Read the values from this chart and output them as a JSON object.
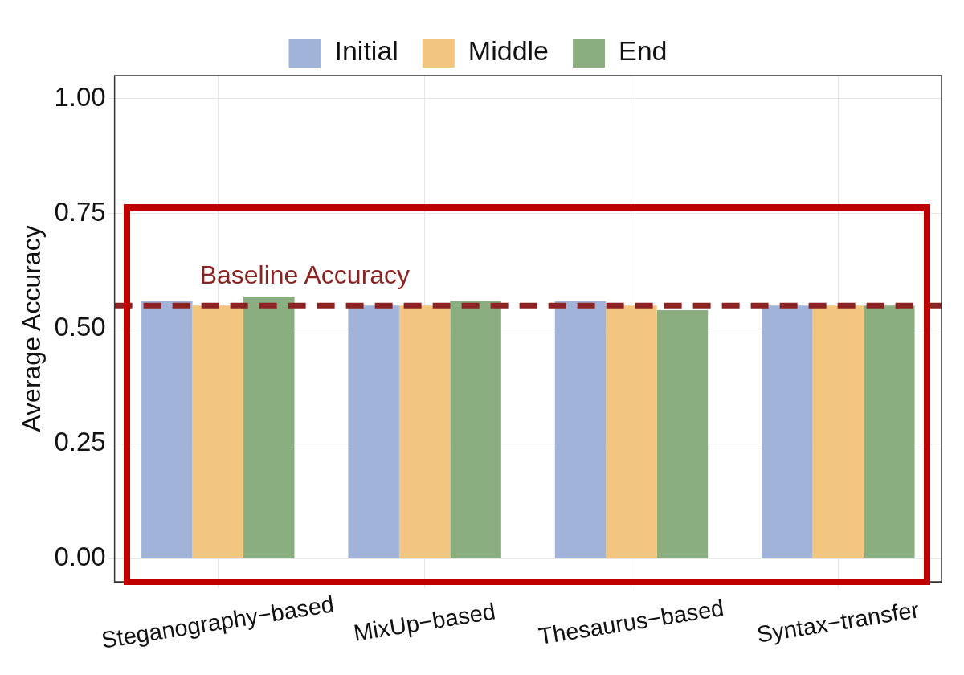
{
  "chart_data": {
    "type": "bar",
    "ylabel": "Average Accuracy",
    "categories": [
      "Steganography−based",
      "MixUp−based",
      "Thesaurus−based",
      "Syntax−transfer"
    ],
    "series": [
      {
        "name": "Initial",
        "color": "#a2b3d9",
        "values": [
          0.56,
          0.55,
          0.56,
          0.55
        ]
      },
      {
        "name": "Middle",
        "color": "#f2c67e",
        "values": [
          0.55,
          0.55,
          0.55,
          0.55
        ]
      },
      {
        "name": "End",
        "color": "#8aae7f",
        "values": [
          0.57,
          0.56,
          0.54,
          0.55
        ]
      }
    ],
    "ylim": [
      -0.05,
      1.05
    ],
    "yticks": [
      {
        "value": 0,
        "label": "0.00"
      },
      {
        "value": 0.25,
        "label": "0.25"
      },
      {
        "value": 0.5,
        "label": "0.50"
      },
      {
        "value": 0.75,
        "label": "0.75"
      },
      {
        "value": 1,
        "label": "1.00"
      }
    ],
    "ref_lines": [
      {
        "axis": "y",
        "value": 0.55,
        "label": "Baseline Accuracy",
        "color": "#8b2323",
        "line_style": "dashed"
      }
    ],
    "grid": true,
    "legend": "top"
  }
}
